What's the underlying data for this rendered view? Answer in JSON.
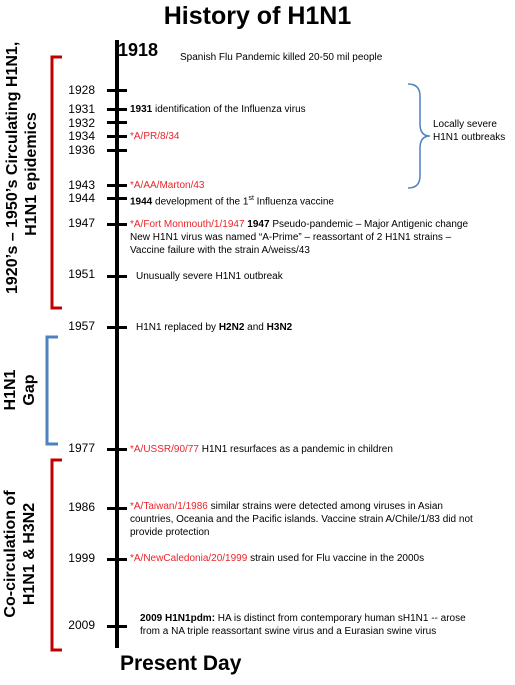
{
  "title": "History of H1N1",
  "start_year": "1918",
  "start_event": "Spanish Flu Pandemic killed 20-50 mil people",
  "end_label": "Present Day",
  "eras": [
    {
      "line1": "1920’s – 1950’s Circulating H1N1,",
      "line2": "H1N1 epidemics",
      "color": "#c00000"
    },
    {
      "line1": "H1N1",
      "line2": "Gap",
      "color": "#4f81bd"
    },
    {
      "line1": "Co-circulation of",
      "line2": "H1N1 & H3N2",
      "color": "#c00000"
    }
  ],
  "side_note": {
    "line1": "Locally severe",
    "line2": "H1N1 outbreaks",
    "color": "#4f81bd"
  },
  "years": {
    "y1928": "1928",
    "y1931": "1931",
    "y1932": "1932",
    "y1934": "1934",
    "y1936": "1936",
    "y1943": "1943",
    "y1944": "1944",
    "y1947": "1947",
    "y1951": "1951",
    "y1957": "1957",
    "y1977": "1977",
    "y1986": "1986",
    "y1999": "1999",
    "y2009": "2009"
  },
  "events": {
    "e1931_bold": "1931",
    "e1931_text": " identification of the Influenza virus",
    "e1934_strain": "*A/PR/8/34",
    "e1943_strain": "*A/AA/Marton/43",
    "e1944_bold": "1944",
    "e1944_text": " development of the 1",
    "e1944_sup": "st",
    "e1944_text2": " Influenza vaccine",
    "e1947_strain": "*A/Fort Monmouth/1/1947",
    "e1947_bold": " 1947",
    "e1947_text": " Pseudo-pandemic – Major Antigenic change",
    "e1947_line2": "New H1N1 virus was named “A-Prime” – reassortant of 2 H1N1 strains –",
    "e1947_line3": "Vaccine failure with the strain A/weiss/43",
    "e1951_text": "Unusually severe H1N1 outbreak",
    "e1957_text": "H1N1 replaced by ",
    "e1957_b1": "H2N2",
    "e1957_and": " and ",
    "e1957_b2": "H3N2",
    "e1977_strain": "*A/USSR/90/77",
    "e1977_text": " H1N1 resurfaces as a pandemic in children",
    "e1986_strain": "*A/Taiwan/1/1986",
    "e1986_text": " similar strains were detected among viruses in Asian",
    "e1986_line2": "countries, Oceania and the Pacific islands. Vaccine strain A/Chile/1/83 did not",
    "e1986_line3": "provide protection",
    "e1999_strain": "*A/NewCaledonia/20/1999",
    "e1999_text": " strain used for Flu vaccine in the 2000s",
    "e2009_bold": "2009 H1N1pdm:",
    "e2009_text": " HA is distinct from contemporary human sH1N1  -- arose",
    "e2009_line2": "from a NA triple reassortant swine virus and a Eurasian swine virus"
  }
}
